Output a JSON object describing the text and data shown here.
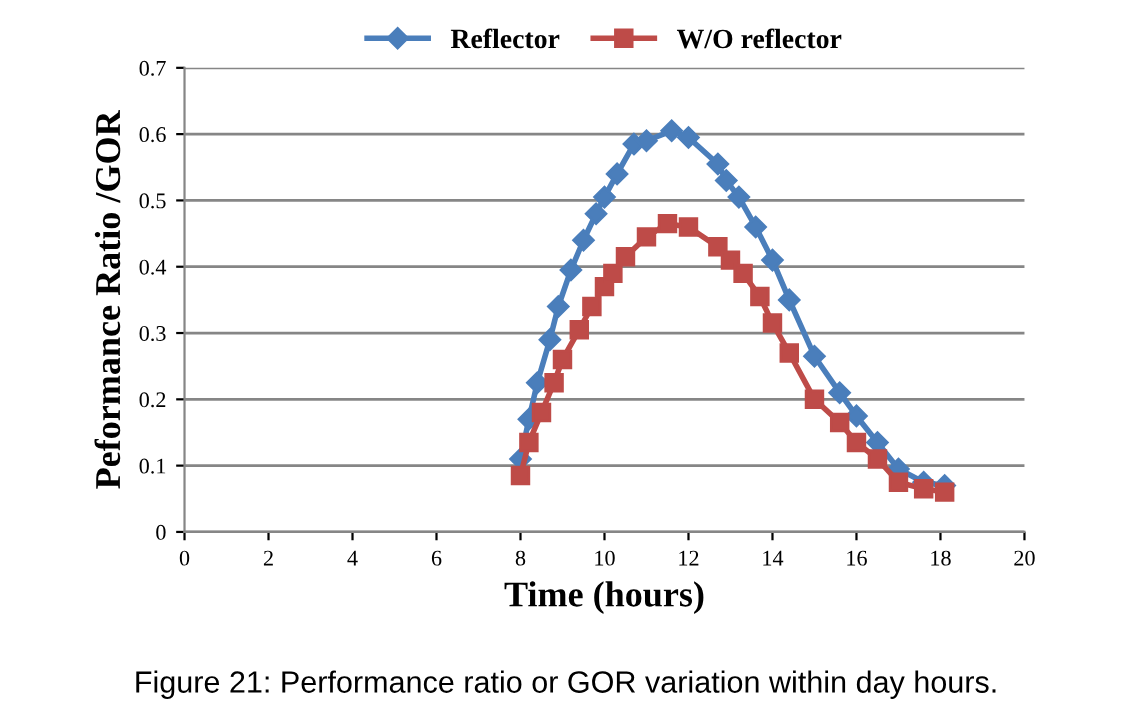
{
  "chart_data": {
    "type": "line",
    "xlabel": "Time (hours)",
    "ylabel": "Peformance Ratio /GOR",
    "annotations": [
      "Figure 21: Performance ratio or GOR variation within day hours."
    ],
    "xlim": [
      0,
      20
    ],
    "xticks": [
      0,
      2,
      4,
      6,
      8,
      10,
      12,
      14,
      16,
      18,
      20
    ],
    "ylim": [
      0,
      0.7
    ],
    "yticks": [
      0,
      0.1,
      0.2,
      0.3,
      0.4,
      0.5,
      0.6,
      0.7
    ],
    "grid": "y",
    "legend": "top",
    "series": [
      {
        "name": "Reflector",
        "color": "#4a7ebb",
        "marker": "diamond",
        "x": [
          8.0,
          8.2,
          8.4,
          8.7,
          8.9,
          9.2,
          9.5,
          9.8,
          10.0,
          10.3,
          10.7,
          11.0,
          11.6,
          12.0,
          12.7,
          12.9,
          13.2,
          13.6,
          14.0,
          14.4,
          15.0,
          15.6,
          16.0,
          16.5,
          17.0,
          17.6,
          18.1
        ],
        "values": [
          0.11,
          0.17,
          0.225,
          0.29,
          0.34,
          0.395,
          0.44,
          0.48,
          0.505,
          0.54,
          0.585,
          0.59,
          0.605,
          0.595,
          0.555,
          0.53,
          0.505,
          0.46,
          0.41,
          0.35,
          0.265,
          0.21,
          0.175,
          0.135,
          0.095,
          0.075,
          0.07
        ]
      },
      {
        "name": "W/O reflector",
        "color": "#be4b48",
        "marker": "square",
        "x": [
          8.0,
          8.2,
          8.5,
          8.8,
          9.0,
          9.4,
          9.7,
          10.0,
          10.2,
          10.5,
          11.0,
          11.5,
          12.0,
          12.7,
          13.0,
          13.3,
          13.7,
          14.0,
          14.4,
          15.0,
          15.6,
          16.0,
          16.5,
          17.0,
          17.6,
          18.1
        ],
        "values": [
          0.085,
          0.135,
          0.18,
          0.225,
          0.26,
          0.305,
          0.34,
          0.37,
          0.39,
          0.415,
          0.445,
          0.465,
          0.46,
          0.43,
          0.41,
          0.39,
          0.355,
          0.315,
          0.27,
          0.2,
          0.165,
          0.135,
          0.11,
          0.075,
          0.065,
          0.06
        ]
      }
    ]
  }
}
